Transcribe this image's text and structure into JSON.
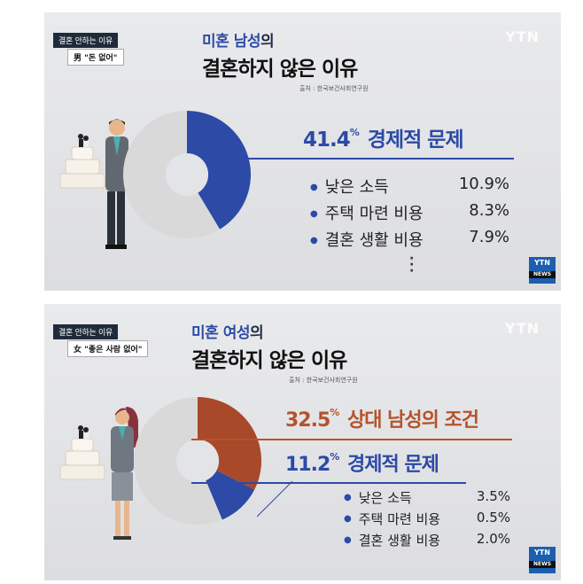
{
  "panel_male": {
    "tag_top": "결혼 안하는 이유",
    "tag_bottom": "男 \"돈 없어\"",
    "title_accent": "미혼 남성",
    "title_suffix": "의",
    "title_main": "결혼하지 않은 이유",
    "source": "출처 : 한국보건사회연구원",
    "channel": "YTN",
    "badge_top": "YTN",
    "badge_bottom": "NEWS",
    "headline": {
      "value": "41.4",
      "unit": "%",
      "label": "경제적 문제",
      "color": "#2c4aa6"
    },
    "items": [
      {
        "label": "낮은 소득",
        "value": "10.9%"
      },
      {
        "label": "주택 마련 비용",
        "value": "8.3%"
      },
      {
        "label": "결혼 생활 비용",
        "value": "7.9%"
      }
    ],
    "donut_segments": [
      {
        "share": 41.4,
        "color": "#2c4aa6"
      },
      {
        "share": 58.6,
        "color": "#d9d9d9"
      }
    ]
  },
  "panel_female": {
    "tag_top": "결혼 안하는 이유",
    "tag_bottom": "女 \"좋은 사람 없어\"",
    "title_accent": "미혼 여성",
    "title_suffix": "의",
    "title_main": "결혼하지 않은 이유",
    "source": "출처 : 한국보건사회연구원",
    "channel": "YTN",
    "badge_top": "YTN",
    "badge_bottom": "NEWS",
    "headline1": {
      "value": "32.5",
      "unit": "%",
      "label": "상대 남성의 조건",
      "color": "#b5532b"
    },
    "headline2": {
      "value": "11.2",
      "unit": "%",
      "label": "경제적 문제",
      "color": "#2c4aa6"
    },
    "items": [
      {
        "label": "낮은 소득",
        "value": "3.5%"
      },
      {
        "label": "주택 마련 비용",
        "value": "0.5%"
      },
      {
        "label": "결혼 생활 비용",
        "value": "2.0%"
      }
    ],
    "donut_segments": [
      {
        "share": 32.5,
        "color": "#a8492a"
      },
      {
        "share": 11.2,
        "color": "#2c4aa6"
      },
      {
        "share": 56.3,
        "color": "#d9d9d9"
      }
    ]
  }
}
